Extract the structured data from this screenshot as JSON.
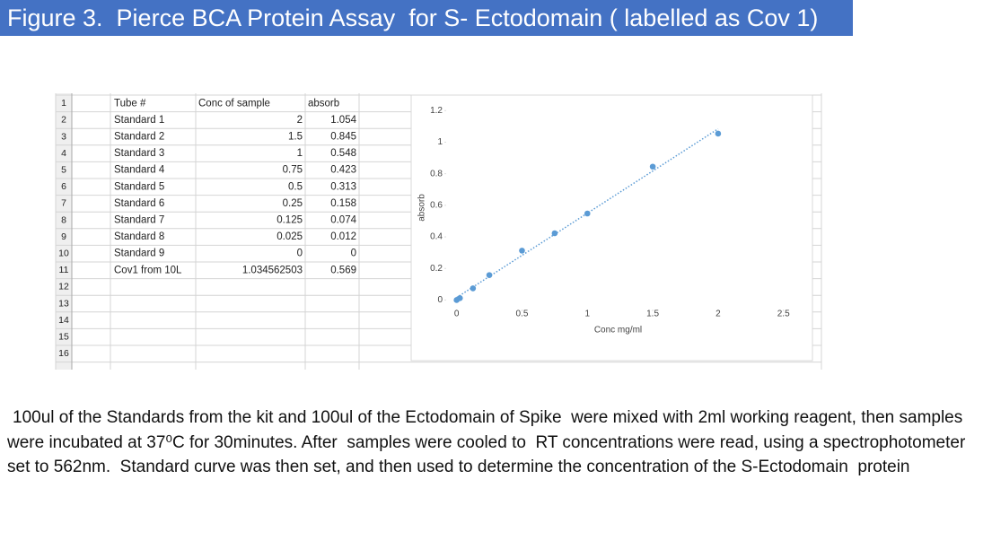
{
  "header": {
    "title": "Figure 3.  Pierce BCA Protein Assay  for S- Ectodomain ( labelled as Cov 1)"
  },
  "spreadsheet": {
    "row_numbers": [
      "1",
      "2",
      "3",
      "4",
      "5",
      "6",
      "7",
      "8",
      "9",
      "10",
      "11",
      "12",
      "13",
      "14",
      "15",
      "16"
    ],
    "rows": [
      [
        "Tube #",
        "Conc of sample",
        "absorb"
      ],
      [
        "Standard 1",
        "2",
        "1.054"
      ],
      [
        "Standard 2",
        "1.5",
        "0.845"
      ],
      [
        "Standard 3",
        "1",
        "0.548"
      ],
      [
        "Standard 4",
        "0.75",
        "0.423"
      ],
      [
        "Standard 5",
        "0.5",
        "0.313"
      ],
      [
        "Standard 6",
        "0.25",
        "0.158"
      ],
      [
        "Standard 7",
        "0.125",
        "0.074"
      ],
      [
        "Standard 8",
        "0.025",
        "0.012"
      ],
      [
        "Standard 9",
        "0",
        "0"
      ],
      [
        "Cov1 from 10L",
        "1.034562503",
        "0.569"
      ]
    ]
  },
  "chart_data": {
    "type": "scatter",
    "x_label": "Conc mg/ml",
    "y_label": "absorb",
    "x": [
      2,
      1.5,
      1,
      0.75,
      0.5,
      0.25,
      0.125,
      0.025,
      0
    ],
    "values": [
      1.054,
      0.845,
      0.548,
      0.423,
      0.313,
      0.158,
      0.074,
      0.012,
      0
    ],
    "color": "#5b9bd5",
    "trendline": "linear",
    "xlim": [
      -0.08,
      2.55
    ],
    "xticks": [
      0,
      0.5,
      1,
      1.5,
      2,
      2.5
    ],
    "ylim": [
      -0.06,
      1.23
    ],
    "yticks": [
      0,
      0.2,
      0.4,
      0.6,
      0.8,
      1,
      1.2
    ]
  },
  "paragraph": "100ul of the Standards from the kit and 100ul of the Ectodomain of Spike  were mixed with 2ml working reagent, then samples were incubated at 37⁰C for 30minutes. After  samples were cooled to  RT concentrations were read, using a spectrophotometer set to 562nm.  Standard curve was then set, and then used to determine the concentration of the S-Ectodomain  protein"
}
